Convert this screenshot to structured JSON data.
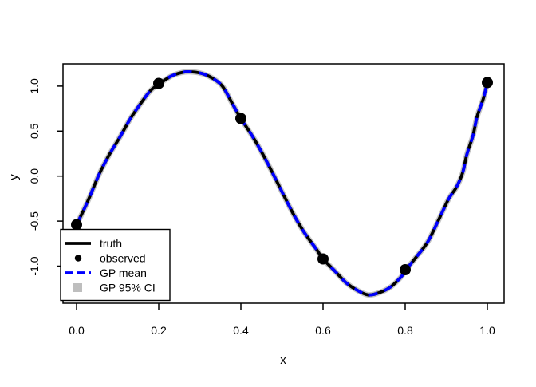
{
  "figure": {
    "background_color": "#ffffff",
    "plot_border_color": "#000000"
  },
  "chart_data": {
    "type": "line",
    "title": "",
    "xlabel": "x",
    "ylabel": "y",
    "grid": false,
    "axis": {
      "x_ticks": [
        0.0,
        0.2,
        0.4,
        0.6,
        0.8,
        1.0
      ],
      "x_tick_labels": [
        "0.0",
        "0.2",
        "0.4",
        "0.6",
        "0.8",
        "1.0"
      ],
      "y_ticks": [
        1.0,
        0.5,
        0.0,
        -0.5,
        -1.0
      ],
      "y_tick_labels": [
        "1.0",
        "0.5",
        "0.0",
        "-0.5",
        "-1.0"
      ],
      "xlim": [
        -0.03,
        1.04
      ],
      "ylim": [
        -1.41,
        1.25
      ]
    },
    "curve": {
      "x": [
        0.0,
        0.015,
        0.03,
        0.055,
        0.08,
        0.105,
        0.13,
        0.155,
        0.18,
        0.2,
        0.23,
        0.255,
        0.275,
        0.305,
        0.33,
        0.355,
        0.38,
        0.4,
        0.43,
        0.455,
        0.48,
        0.505,
        0.53,
        0.555,
        0.585,
        0.6,
        0.63,
        0.655,
        0.68,
        0.71,
        0.74,
        0.765,
        0.79,
        0.8,
        0.825,
        0.855,
        0.88,
        0.905,
        0.925,
        0.94,
        0.95,
        0.965,
        0.975,
        0.99,
        1.0
      ],
      "y": [
        -0.54,
        -0.4,
        -0.25,
        0.02,
        0.24,
        0.43,
        0.63,
        0.8,
        0.95,
        1.02,
        1.11,
        1.15,
        1.16,
        1.14,
        1.09,
        1.0,
        0.8,
        0.64,
        0.43,
        0.23,
        0.01,
        -0.22,
        -0.44,
        -0.63,
        -0.82,
        -0.92,
        -1.06,
        -1.18,
        -1.26,
        -1.32,
        -1.29,
        -1.23,
        -1.12,
        -1.05,
        -0.91,
        -0.73,
        -0.5,
        -0.26,
        -0.12,
        0.04,
        0.24,
        0.45,
        0.66,
        0.86,
        1.04
      ]
    },
    "series": [
      {
        "name": "truth",
        "kind": "line",
        "color": "#000000",
        "line_style": "solid",
        "data_ref": "curve"
      },
      {
        "name": "observed",
        "kind": "scatter",
        "color": "#000000",
        "x": [
          0.0,
          0.2,
          0.4,
          0.6,
          0.8,
          1.0
        ],
        "y": [
          -0.54,
          1.03,
          0.64,
          -0.92,
          -1.04,
          1.04
        ]
      },
      {
        "name": "GP mean",
        "kind": "line",
        "color": "#0000FF",
        "line_style": "dashed",
        "data_ref": "curve"
      },
      {
        "name": "GP 95% CI",
        "kind": "band",
        "color": "#C4C4C4",
        "swatch_color": "#BEBEBE",
        "data_ref": "curve"
      }
    ],
    "legend": {
      "position": "bottom-left",
      "entries": [
        {
          "label": "truth",
          "symbol": "solid-line",
          "color": "#000000"
        },
        {
          "label": "observed",
          "symbol": "point",
          "color": "#000000"
        },
        {
          "label": "GP mean",
          "symbol": "dashed-line",
          "color": "#0000FF"
        },
        {
          "label": "GP 95% CI",
          "symbol": "square",
          "color": "#BEBEBE"
        }
      ]
    }
  }
}
